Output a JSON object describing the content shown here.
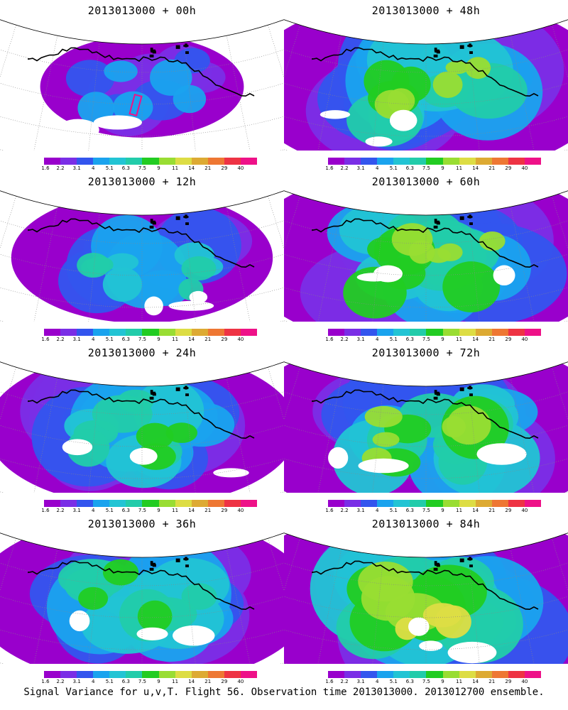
{
  "caption": "Signal Variance for u,v,T. Flight 56. Observation time 2013013000. 2013012700 ensemble.",
  "colorbar": {
    "tick_labels": [
      "1.6",
      "2.2",
      "3.1",
      "4",
      "5.1",
      "6.3",
      "7.5",
      "9",
      "11",
      "14",
      "21",
      "29",
      "40"
    ],
    "colors": [
      "#9900cc",
      "#7a2ee6",
      "#3355ee",
      "#1aa3ee",
      "#22c4d4",
      "#22ccaa",
      "#22cc22",
      "#99dd33",
      "#dddd44",
      "#ddaa33",
      "#ee7733",
      "#ee3344",
      "#ee1188"
    ]
  },
  "panels": [
    {
      "title": "2013013000 + 00h",
      "intensity": 0.25,
      "coverage": 0.35,
      "observation_box": true
    },
    {
      "title": "2013013000 + 48h",
      "intensity": 0.62,
      "coverage": 0.9
    },
    {
      "title": "2013013000 + 12h",
      "intensity": 0.45,
      "coverage": 0.55
    },
    {
      "title": "2013013000 + 60h",
      "intensity": 0.68,
      "coverage": 0.92
    },
    {
      "title": "2013013000 + 24h",
      "intensity": 0.55,
      "coverage": 0.72
    },
    {
      "title": "2013013000 + 72h",
      "intensity": 0.72,
      "coverage": 0.95
    },
    {
      "title": "2013013000 + 36h",
      "intensity": 0.6,
      "coverage": 0.82
    },
    {
      "title": "2013013000 + 84h",
      "intensity": 0.78,
      "coverage": 0.97
    }
  ]
}
